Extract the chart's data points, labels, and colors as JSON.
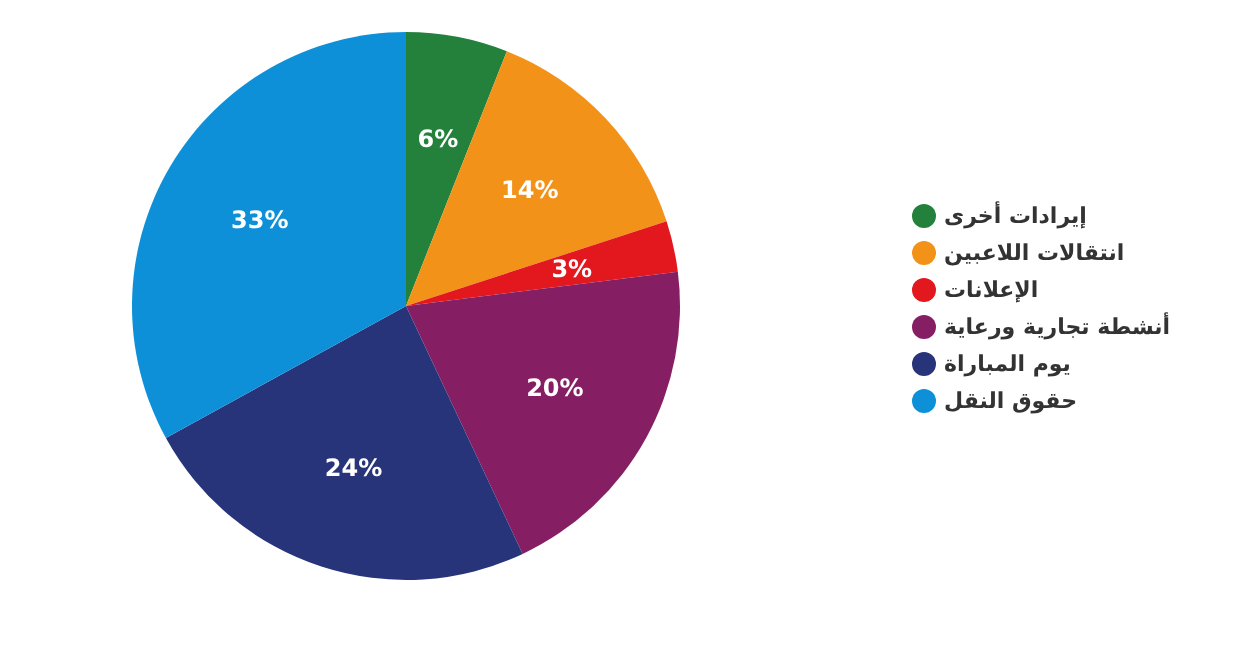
{
  "chart_data": {
    "type": "pie",
    "categories": [
      "إيرادات أخرى",
      "انتقالات اللاعبين",
      "الإعلانات",
      "أنشطة تجارية ورعاية",
      "يوم المباراة",
      "حقوق النقل"
    ],
    "values": [
      6,
      14,
      3,
      20,
      24,
      33
    ],
    "colors": [
      "#23813b",
      "#f29219",
      "#e3181f",
      "#861e63",
      "#283479",
      "#0e90d8"
    ],
    "value_labels": [
      "6%",
      "14%",
      "3%",
      "20%",
      "24%",
      "33%"
    ],
    "legend": "right"
  }
}
